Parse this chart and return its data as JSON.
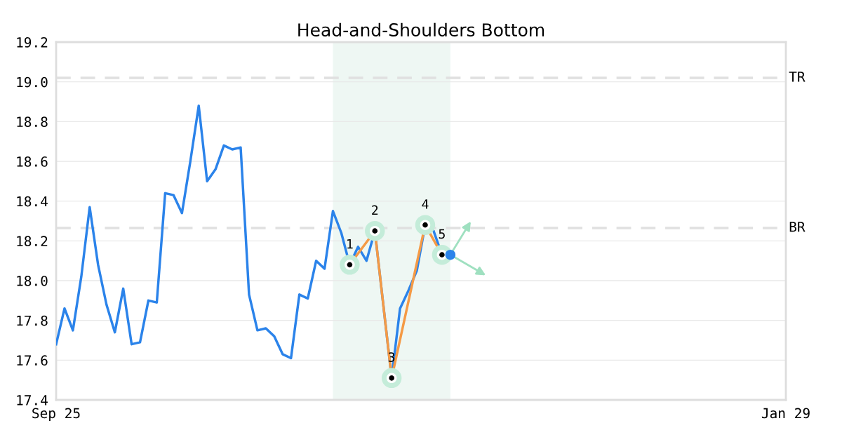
{
  "chart_data": {
    "type": "line",
    "title": "Head-and-Shoulders Bottom",
    "categories": [
      "Sep 25",
      null,
      null,
      null,
      null,
      null,
      null,
      null,
      null,
      null,
      null,
      null,
      null,
      null,
      null,
      null,
      null,
      null,
      null,
      null,
      null,
      null,
      null,
      null,
      null,
      null,
      null,
      null,
      null,
      null,
      null,
      null,
      null,
      null,
      null,
      null,
      null,
      null,
      null,
      null,
      null,
      null,
      null,
      null,
      null,
      null,
      null,
      null,
      null,
      null,
      null,
      null,
      null,
      null,
      null,
      null,
      null,
      null,
      null,
      null,
      null,
      null,
      null,
      null,
      null,
      null,
      null,
      null,
      null,
      null,
      null,
      null,
      null,
      null,
      null,
      null,
      null,
      null,
      null,
      null,
      null,
      null,
      null,
      null,
      null,
      null,
      null,
      "Jan 29"
    ],
    "ylim": [
      17.4,
      19.2
    ],
    "yticks": [
      {
        "value": 17.4,
        "label": "17.4"
      },
      {
        "value": 17.6,
        "label": "17.6"
      },
      {
        "value": 17.8,
        "label": "17.8"
      },
      {
        "value": 18.0,
        "label": "18.0"
      },
      {
        "value": 18.2,
        "label": "18.2"
      },
      {
        "value": 18.4,
        "label": "18.4"
      },
      {
        "value": 18.6,
        "label": "18.6"
      },
      {
        "value": 18.8,
        "label": "18.8"
      },
      {
        "value": 19.0,
        "label": "19.0"
      },
      {
        "value": 19.2,
        "label": "19.2"
      }
    ],
    "grid": "y",
    "line_style": "solid",
    "series": [
      {
        "color": "#2b83ea",
        "marker": "none",
        "values": [
          17.68,
          17.86,
          17.75,
          18.02,
          18.37,
          18.08,
          17.88,
          17.74,
          17.96,
          17.68,
          17.69,
          17.9,
          17.89,
          18.44,
          18.43,
          18.34,
          18.6,
          18.88,
          18.5,
          18.56,
          18.68,
          18.66,
          18.67,
          17.93,
          17.75,
          17.76,
          17.72,
          17.63,
          17.61,
          17.93,
          17.91,
          18.1,
          18.06,
          18.35,
          18.24,
          18.08,
          18.17,
          18.1,
          18.25,
          null,
          17.51,
          17.86,
          17.95,
          18.05,
          18.28,
          18.25,
          18.13,
          18.13,
          null,
          null,
          null,
          null,
          null,
          null,
          null,
          null,
          null,
          null,
          null,
          null,
          null,
          null,
          null,
          null,
          null,
          null,
          null,
          null,
          null,
          null,
          null,
          null,
          null,
          null,
          null,
          null,
          null,
          null,
          null,
          null,
          null,
          null,
          null,
          null,
          null,
          null,
          null,
          null
        ]
      },
      {
        "color": "#f59a45",
        "marker": "circle",
        "values": [
          null,
          null,
          null,
          null,
          null,
          null,
          null,
          null,
          null,
          null,
          null,
          null,
          null,
          null,
          null,
          null,
          null,
          null,
          null,
          null,
          null,
          null,
          null,
          null,
          null,
          null,
          null,
          null,
          null,
          null,
          null,
          null,
          null,
          null,
          null,
          18.08,
          null,
          null,
          18.25,
          null,
          17.51,
          null,
          null,
          null,
          18.28,
          null,
          18.13,
          null,
          null,
          null,
          null,
          null,
          null,
          null,
          null,
          null,
          null,
          null,
          null,
          null,
          null,
          null,
          null,
          null,
          null,
          null,
          null,
          null,
          null,
          null,
          null,
          null,
          null,
          null,
          null,
          null,
          null,
          null,
          null,
          null,
          null,
          null,
          null,
          null,
          null,
          null,
          null,
          null
        ]
      },
      {
        "type": "scatter",
        "color": "#2b83ea",
        "marker": "circle",
        "values": [
          null,
          null,
          null,
          null,
          null,
          null,
          null,
          null,
          null,
          null,
          null,
          null,
          null,
          null,
          null,
          null,
          null,
          null,
          null,
          null,
          null,
          null,
          null,
          null,
          null,
          null,
          null,
          null,
          null,
          null,
          null,
          null,
          null,
          null,
          null,
          null,
          null,
          null,
          null,
          null,
          null,
          null,
          null,
          null,
          null,
          null,
          null,
          18.13,
          null,
          null,
          null,
          null,
          null,
          null,
          null,
          null,
          null,
          null,
          null,
          null,
          null,
          null,
          null,
          null,
          null,
          null,
          null,
          null,
          null,
          null,
          null,
          null,
          null,
          null,
          null,
          null,
          null,
          null,
          null,
          null,
          null,
          null,
          null,
          null,
          null,
          null,
          null,
          null
        ]
      }
    ],
    "ref_lines": [
      {
        "axis": "y",
        "value": 19.02,
        "label": "TR",
        "color": "#e0e0e0",
        "line_style": "dashed"
      },
      {
        "axis": "y",
        "value": 18.265,
        "label": "BR",
        "color": "#e0e0e0",
        "line_style": "dashed"
      }
    ],
    "annotations": [
      "1",
      "2",
      "3",
      "4",
      "5"
    ]
  }
}
